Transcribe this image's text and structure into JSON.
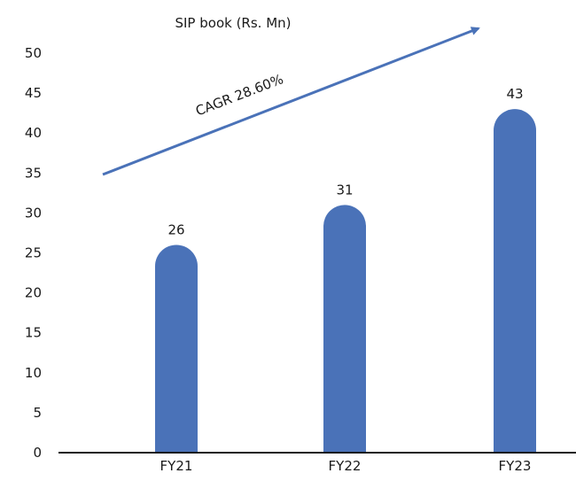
{
  "chart_data": {
    "type": "bar",
    "title": "SIP book (Rs. Mn)",
    "categories": [
      "FY21",
      "FY22",
      "FY23"
    ],
    "values": [
      26,
      31,
      43
    ],
    "data_labels": [
      "26",
      "31",
      "43"
    ],
    "y_ticks": [
      0,
      5,
      10,
      15,
      20,
      25,
      30,
      35,
      40,
      45,
      50
    ],
    "ylim": [
      0,
      50
    ],
    "xlabel": "",
    "ylabel": "",
    "grid": false,
    "bar_color": "#4a72b8",
    "annotation": {
      "text": "CAGR 28.60%",
      "arrow_color": "#4a72b8"
    }
  }
}
